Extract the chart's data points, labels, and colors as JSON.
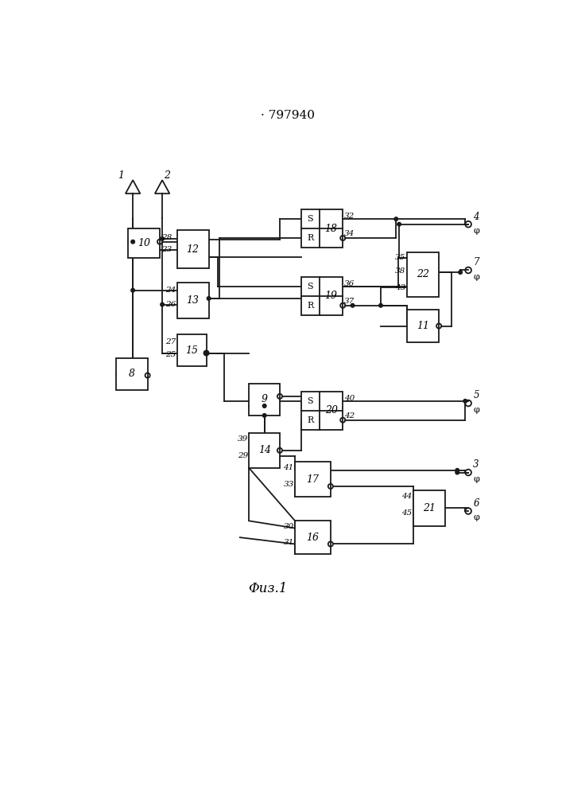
{
  "title": "· 797940",
  "fig_label": "Φиз.1",
  "background_color": "#ffffff",
  "line_color": "#1a1a1a",
  "figsize": [
    7.07,
    10.0
  ],
  "dpi": 100,
  "blocks": {
    "b10": [
      92,
      735,
      52,
      48
    ],
    "b12": [
      172,
      718,
      52,
      62
    ],
    "b13": [
      172,
      637,
      52,
      58
    ],
    "b15": [
      172,
      558,
      48,
      52
    ],
    "b8": [
      72,
      520,
      52,
      52
    ],
    "b9": [
      290,
      478,
      50,
      52
    ],
    "b14": [
      290,
      392,
      50,
      58
    ],
    "b18": [
      375,
      752,
      68,
      62
    ],
    "b19": [
      375,
      642,
      68,
      62
    ],
    "b20": [
      375,
      455,
      68,
      62
    ],
    "b17": [
      365,
      345,
      58,
      58
    ],
    "b16": [
      365,
      252,
      58,
      54
    ],
    "b22": [
      548,
      672,
      52,
      72
    ],
    "b11": [
      548,
      598,
      52,
      52
    ],
    "b21": [
      558,
      298,
      52,
      58
    ]
  }
}
